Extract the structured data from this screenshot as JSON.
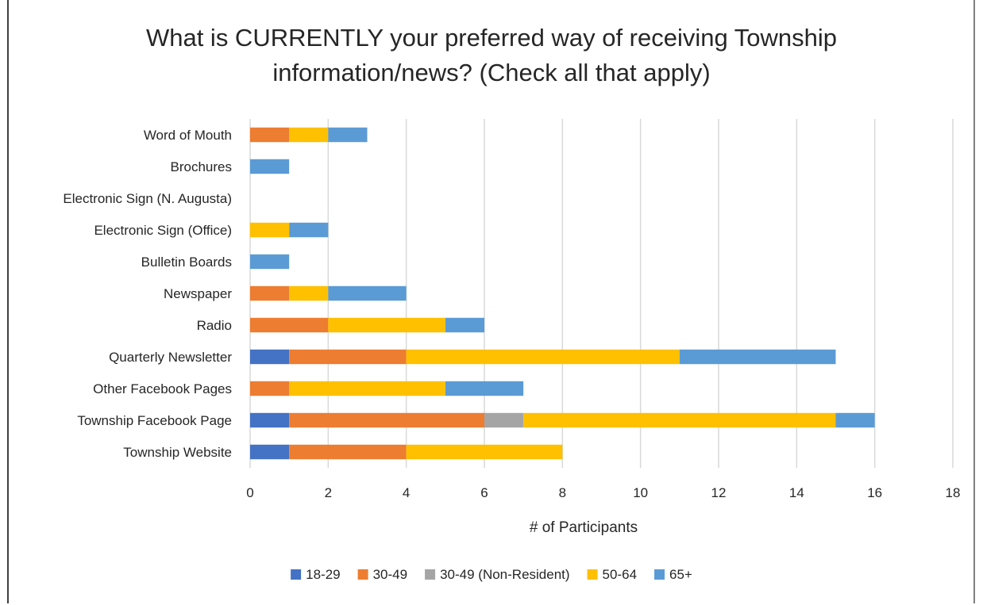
{
  "chart_data": {
    "type": "bar",
    "orientation": "horizontal",
    "stacked": true,
    "title_lines": [
      "What is CURRENTLY your preferred way of receiving Township",
      "information/news? (Check all that apply)"
    ],
    "xlabel": "# of Participants",
    "ylabel": "",
    "xlim": [
      0,
      18
    ],
    "xticks": [
      0,
      2,
      4,
      6,
      8,
      10,
      12,
      14,
      16,
      18
    ],
    "grid": "vertical",
    "legend_position": "bottom",
    "categories": [
      "Word of Mouth",
      "Brochures",
      "Electronic Sign (N. Augusta)",
      "Electronic Sign (Office)",
      "Bulletin Boards",
      "Newspaper",
      "Radio",
      "Quarterly Newsletter",
      "Other Facebook Pages",
      "Township Facebook Page",
      "Township Website"
    ],
    "series": [
      {
        "name": "18-29",
        "color": "#4472c4",
        "values": [
          0,
          0,
          0,
          0,
          0,
          0,
          0,
          1,
          0,
          1,
          1
        ]
      },
      {
        "name": "30-49",
        "color": "#ed7d31",
        "values": [
          1,
          0,
          0,
          0,
          0,
          1,
          2,
          3,
          1,
          5,
          3
        ]
      },
      {
        "name": "30-49 (Non-Resident)",
        "color": "#a5a5a5",
        "values": [
          0,
          0,
          0,
          0,
          0,
          0,
          0,
          0,
          0,
          1,
          0
        ]
      },
      {
        "name": "50-64",
        "color": "#ffc000",
        "values": [
          1,
          0,
          0,
          1,
          0,
          1,
          3,
          7,
          4,
          8,
          4
        ]
      },
      {
        "name": "65+",
        "color": "#5b9bd5",
        "values": [
          1,
          1,
          0,
          1,
          1,
          2,
          1,
          4,
          2,
          1,
          0
        ]
      }
    ]
  }
}
